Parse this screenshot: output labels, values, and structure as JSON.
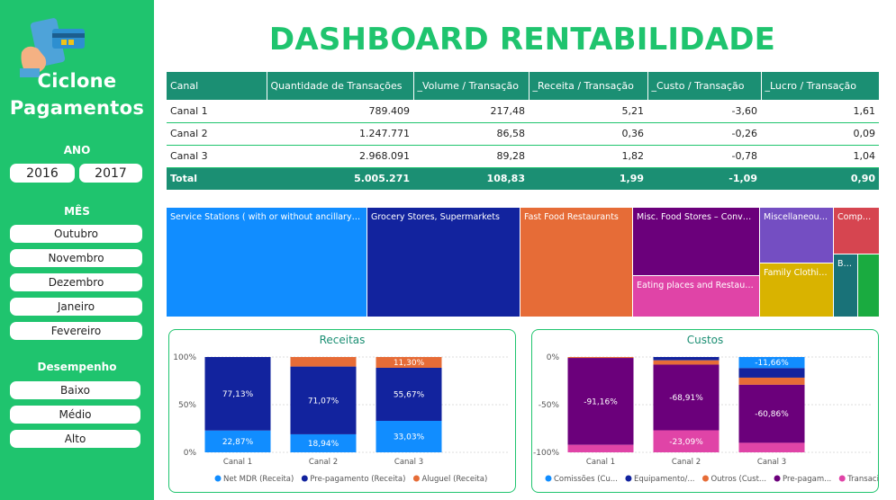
{
  "sidebar": {
    "brand_line1": "Ciclone",
    "brand_line2": "Pagamentos",
    "ano_title": "ANO",
    "anos": [
      "2016",
      "2017"
    ],
    "mes_title": "MÊS",
    "meses": [
      "Outubro",
      "Novembro",
      "Dezembro",
      "Janeiro",
      "Fevereiro"
    ],
    "desempenho_title": "Desempenho",
    "desempenho": [
      "Baixo",
      "Médio",
      "Alto"
    ]
  },
  "title": "DASHBOARD RENTABILIDADE",
  "table": {
    "headers": [
      "Canal",
      "Quantidade de Transações",
      "_Volume / Transação",
      "_Receita / Transação",
      "_Custo / Transação",
      "_Lucro / Transação"
    ],
    "rows": [
      [
        "Canal 1",
        "789.409",
        "217,48",
        "5,21",
        "-3,60",
        "1,61"
      ],
      [
        "Canal 2",
        "1.247.771",
        "86,58",
        "0,36",
        "-0,26",
        "0,09"
      ],
      [
        "Canal 3",
        "2.968.091",
        "89,28",
        "1,82",
        "-0,78",
        "1,04"
      ]
    ],
    "total": [
      "Total",
      "5.005.271",
      "108,83",
      "1,99",
      "-1,09",
      "0,90"
    ]
  },
  "treemap": [
    {
      "label": "Service Stations ( with or without ancillary ser...",
      "color": "#118dff"
    },
    {
      "label": "Grocery Stores, Supermarkets",
      "color": "#12239e"
    },
    {
      "label": "Fast Food Restaurants",
      "color": "#e66c37"
    },
    {
      "label": "Misc. Food Stores – Conven...",
      "color": "#6b007b"
    },
    {
      "label": "Eating places and Restaura...",
      "color": "#e044a7"
    },
    {
      "label": "Miscellaneous...",
      "color": "#744ec2"
    },
    {
      "label": "Family Clothin...",
      "color": "#d9b300"
    },
    {
      "label": "Comput...",
      "color": "#d64550"
    },
    {
      "label": "Ba...",
      "color": "#197278"
    },
    {
      "label": "",
      "color": "#1aab40"
    }
  ],
  "chart_data": [
    {
      "type": "bar",
      "stacked": "100%",
      "title": "Receitas",
      "categories": [
        "Canal 1",
        "Canal 2",
        "Canal 3"
      ],
      "y_ticks": [
        "100%",
        "50%",
        "0%"
      ],
      "series": [
        {
          "name": "Net MDR (Receita)",
          "color": "#118dff",
          "values": [
            22.87,
            18.94,
            33.03
          ],
          "labels": [
            "22,87%",
            "18,94%",
            "33,03%"
          ]
        },
        {
          "name": "Pre-pagamento (Receita)",
          "color": "#12239e",
          "values": [
            77.13,
            71.07,
            55.67
          ],
          "labels": [
            "77,13%",
            "71,07%",
            "55,67%"
          ]
        },
        {
          "name": "Aluguel (Receita)",
          "color": "#e66c37",
          "values": [
            0,
            9.99,
            11.3
          ],
          "labels": [
            "",
            "",
            "11,30%"
          ]
        }
      ],
      "legend": "bottom"
    },
    {
      "type": "bar",
      "stacked": "100%",
      "title": "Custos",
      "categories": [
        "Canal 1",
        "Canal 2",
        "Canal 3"
      ],
      "y_ticks": [
        "0%",
        "-50%",
        "-100%"
      ],
      "series": [
        {
          "name": "Comissões (Cu...",
          "color": "#118dff",
          "values": [
            0,
            0,
            -11.66
          ],
          "labels": [
            "",
            "",
            "-11,66%"
          ]
        },
        {
          "name": "Equipamento/...",
          "color": "#12239e",
          "values": [
            0,
            -3.5,
            -10.0
          ],
          "labels": [
            "",
            "",
            ""
          ]
        },
        {
          "name": "Outros (Cust...",
          "color": "#e66c37",
          "values": [
            -1.0,
            -4.5,
            -7.5
          ],
          "labels": [
            "",
            "",
            ""
          ]
        },
        {
          "name": "Pre-pagam...",
          "color": "#6b007b",
          "values": [
            -91.16,
            -68.91,
            -60.86
          ],
          "labels": [
            "-91,16%",
            "-68,91%",
            "-60,86%"
          ]
        },
        {
          "name": "Transacion...",
          "color": "#e044a7",
          "values": [
            -7.84,
            -23.09,
            -9.98
          ],
          "labels": [
            "",
            "-23,09%",
            ""
          ]
        }
      ],
      "legend": "bottom"
    }
  ]
}
